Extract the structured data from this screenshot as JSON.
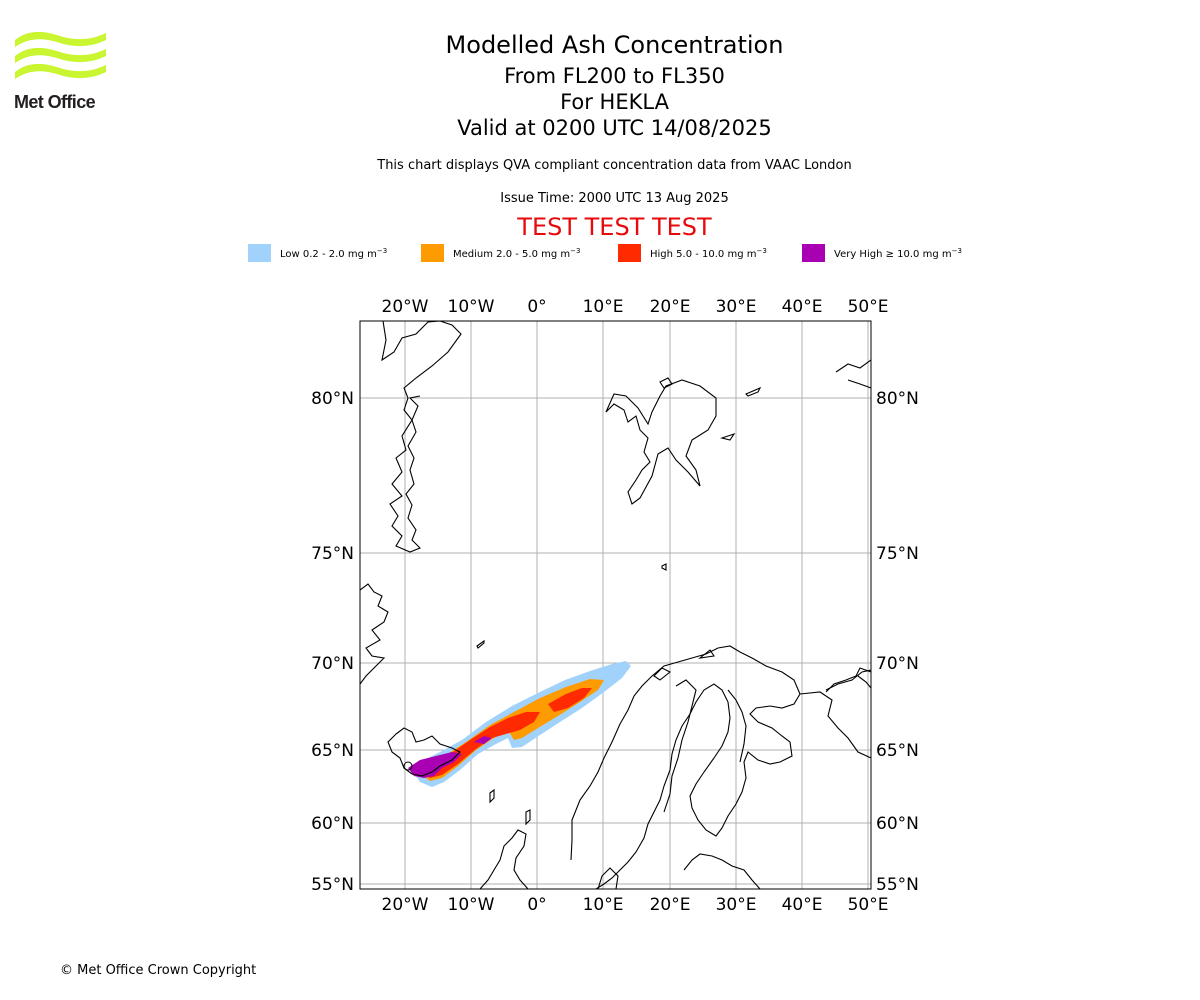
{
  "header": {
    "logo_text": "Met Office",
    "title": "Modelled Ash Concentration",
    "flight_levels": "From FL200 to FL350",
    "volcano": "For HEKLA",
    "valid_time": "Valid at 0200 UTC 14/08/2025",
    "description": "This chart displays QVA compliant concentration data from VAAC London",
    "issue_time": "Issue Time: 2000 UTC 13 Aug 2025",
    "test_banner": "TEST TEST TEST"
  },
  "legend": [
    {
      "label": "Low 0.2 - 2.0 mg m",
      "unit_exp": "−3",
      "color": "#a1d2fb"
    },
    {
      "label": "Medium 2.0 - 5.0 mg m",
      "unit_exp": "−3",
      "color": "#fd9b00"
    },
    {
      "label": "High 5.0 - 10.0 mg m",
      "unit_exp": "−3",
      "color": "#ff2a00"
    },
    {
      "label": "Very High  ≥  10.0 mg m",
      "unit_exp": "−3",
      "color": "#aa00b4"
    }
  ],
  "map": {
    "lon_labels": [
      "20°W",
      "10°W",
      "0°",
      "10°E",
      "20°E",
      "30°E",
      "40°E",
      "50°E"
    ],
    "lat_labels": [
      "80°N",
      "75°N",
      "70°N",
      "65°N",
      "60°N",
      "55°N"
    ],
    "coastline_color": "#000000",
    "grid_color": "#b0b0b0"
  },
  "footer": {
    "copyright": "© Met Office Crown Copyright"
  }
}
